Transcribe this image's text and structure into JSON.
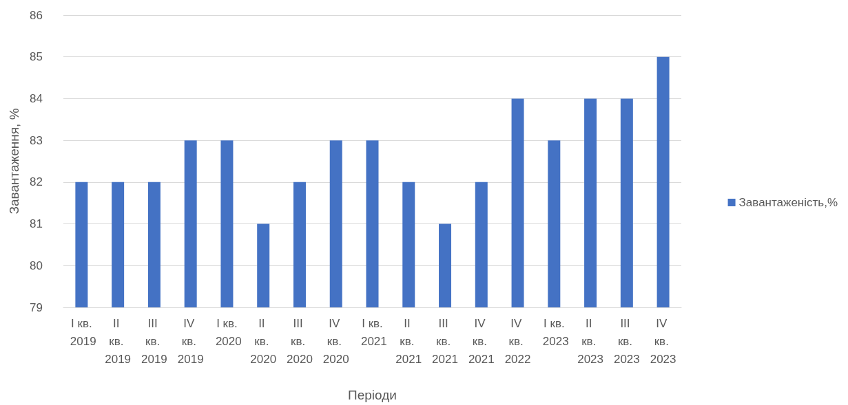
{
  "chart_data": {
    "type": "bar",
    "xlabel": "Періоди",
    "ylabel": "Завантаження, %",
    "categories": [
      "I кв. 2019",
      "II кв. 2019",
      "III кв. 2019",
      "IV кв. 2019",
      "I кв. 2020",
      "II кв. 2020",
      "III кв. 2020",
      "IV кв. 2020",
      "I кв. 2021",
      "II кв. 2021",
      "III кв. 2021",
      "IV кв. 2021",
      "IV кв. 2022",
      "I кв. 2023",
      "II кв. 2023",
      "III кв. 2023",
      "IV кв. 2023"
    ],
    "series": [
      {
        "name": "Завантаженість,%",
        "color": "#4472c4",
        "values": [
          82,
          82,
          82,
          83,
          83,
          81,
          82,
          83,
          83,
          82,
          81,
          82,
          84,
          83,
          84,
          84,
          85
        ]
      }
    ],
    "ylim": [
      79,
      86
    ],
    "yticks": [
      79,
      80,
      81,
      82,
      83,
      84,
      85,
      86
    ],
    "grid": "y",
    "legend": "right"
  }
}
